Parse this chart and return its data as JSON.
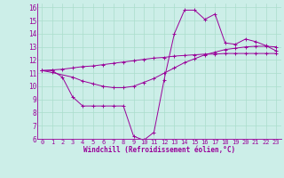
{
  "bg_color": "#cceee8",
  "line_color": "#990099",
  "grid_color": "#aaddcc",
  "xlabel": "Windchill (Refroidissement éolien,°C)",
  "xlabel_fontsize": 5.5,
  "ytick_fontsize": 5.5,
  "xtick_fontsize": 5.0,
  "xlim": [
    -0.5,
    23.5
  ],
  "ylim": [
    6,
    16.3
  ],
  "yticks": [
    6,
    7,
    8,
    9,
    10,
    11,
    12,
    13,
    14,
    15,
    16
  ],
  "xticks": [
    0,
    1,
    2,
    3,
    4,
    5,
    6,
    7,
    8,
    9,
    10,
    11,
    12,
    13,
    14,
    15,
    16,
    17,
    18,
    19,
    20,
    21,
    22,
    23
  ],
  "line1_x": [
    0,
    1,
    2,
    3,
    4,
    5,
    6,
    7,
    8,
    9,
    10,
    11,
    12,
    13,
    14,
    15,
    16,
    17,
    18,
    19,
    20,
    21,
    22,
    23
  ],
  "line1_y": [
    11.2,
    11.2,
    10.7,
    9.2,
    8.5,
    8.5,
    8.5,
    8.5,
    8.5,
    6.2,
    5.9,
    6.5,
    10.5,
    14.0,
    15.8,
    15.8,
    15.1,
    15.5,
    13.3,
    13.2,
    13.6,
    13.4,
    13.1,
    12.7
  ],
  "line2_x": [
    0,
    1,
    3,
    4,
    5,
    6,
    7,
    8,
    9,
    10,
    11,
    12,
    13,
    14,
    15,
    16,
    17,
    18,
    19,
    20,
    21,
    22,
    23
  ],
  "line2_y": [
    11.2,
    11.05,
    10.7,
    10.4,
    10.2,
    10.0,
    9.9,
    9.9,
    10.0,
    10.3,
    10.6,
    11.0,
    11.4,
    11.8,
    12.1,
    12.4,
    12.6,
    12.8,
    12.9,
    13.0,
    13.05,
    13.05,
    13.0
  ],
  "line3_x": [
    0,
    1,
    2,
    3,
    4,
    5,
    6,
    7,
    8,
    9,
    10,
    11,
    12,
    13,
    14,
    15,
    16,
    17,
    18,
    19,
    20,
    21,
    22,
    23
  ],
  "line3_y": [
    11.2,
    11.25,
    11.3,
    11.4,
    11.5,
    11.55,
    11.65,
    11.75,
    11.85,
    11.95,
    12.05,
    12.15,
    12.2,
    12.3,
    12.35,
    12.4,
    12.45,
    12.45,
    12.5,
    12.5,
    12.5,
    12.5,
    12.5,
    12.5
  ]
}
